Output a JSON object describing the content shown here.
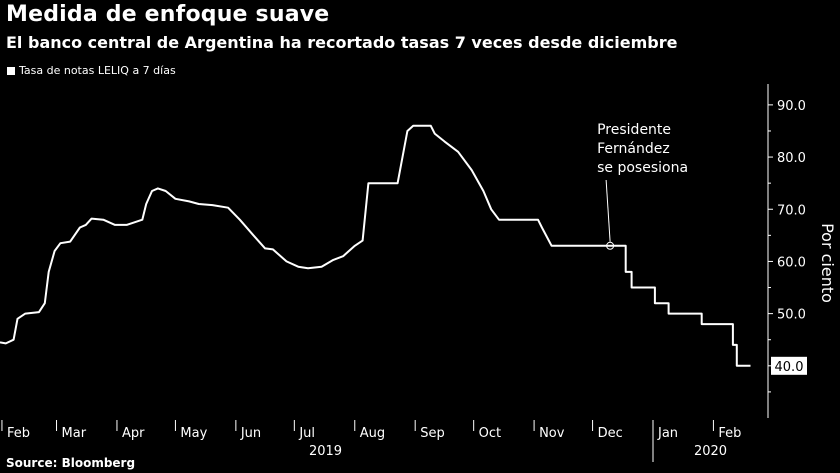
{
  "title": "Medida de enfoque suave",
  "subtitle": "El banco central de Argentina ha recortado tasas 7 veces desde diciembre",
  "source": "Source: Bloomberg",
  "chart_data": {
    "type": "line",
    "series": [
      {
        "name": "Tasa de notas LELIQ a 7 días",
        "color": "#ffffff",
        "points": [
          [
            "2019-01-31",
            44.5
          ],
          [
            "2019-02-03",
            44.3
          ],
          [
            "2019-02-07",
            45.0
          ],
          [
            "2019-02-09",
            49.0
          ],
          [
            "2019-02-13",
            50.0
          ],
          [
            "2019-02-20",
            50.3
          ],
          [
            "2019-02-23",
            52.0
          ],
          [
            "2019-02-25",
            58.0
          ],
          [
            "2019-02-28",
            62.0
          ],
          [
            "2019-03-03",
            63.5
          ],
          [
            "2019-03-08",
            63.8
          ],
          [
            "2019-03-13",
            66.5
          ],
          [
            "2019-03-16",
            67.0
          ],
          [
            "2019-03-19",
            68.2
          ],
          [
            "2019-03-25",
            68.0
          ],
          [
            "2019-03-31",
            67.0
          ],
          [
            "2019-04-06",
            67.0
          ],
          [
            "2019-04-10",
            67.5
          ],
          [
            "2019-04-14",
            68.0
          ],
          [
            "2019-04-16",
            71.0
          ],
          [
            "2019-04-19",
            73.5
          ],
          [
            "2019-04-22",
            74.0
          ],
          [
            "2019-04-26",
            73.5
          ],
          [
            "2019-05-01",
            72.0
          ],
          [
            "2019-05-08",
            71.5
          ],
          [
            "2019-05-13",
            71.0
          ],
          [
            "2019-05-20",
            70.8
          ],
          [
            "2019-05-28",
            70.3
          ],
          [
            "2019-06-03",
            68.0
          ],
          [
            "2019-06-10",
            65.0
          ],
          [
            "2019-06-16",
            62.5
          ],
          [
            "2019-06-20",
            62.3
          ],
          [
            "2019-06-27",
            60.0
          ],
          [
            "2019-07-03",
            59.0
          ],
          [
            "2019-07-08",
            58.7
          ],
          [
            "2019-07-15",
            59.0
          ],
          [
            "2019-07-21",
            60.3
          ],
          [
            "2019-07-26",
            61.0
          ],
          [
            "2019-08-01",
            63.0
          ],
          [
            "2019-08-05",
            64.0
          ],
          [
            "2019-08-08",
            75.0
          ],
          [
            "2019-08-23",
            75.0
          ],
          [
            "2019-08-28",
            85.0
          ],
          [
            "2019-08-31",
            86.0
          ],
          [
            "2019-09-09",
            86.0
          ],
          [
            "2019-09-11",
            84.5
          ],
          [
            "2019-09-16",
            83.0
          ],
          [
            "2019-09-23",
            81.0
          ],
          [
            "2019-09-30",
            77.5
          ],
          [
            "2019-10-06",
            73.5
          ],
          [
            "2019-10-10",
            70.0
          ],
          [
            "2019-10-14",
            68.0
          ],
          [
            "2019-11-03",
            68.0
          ],
          [
            "2019-11-05",
            66.5
          ],
          [
            "2019-11-10",
            63.0
          ],
          [
            "2019-12-18",
            63.0
          ],
          [
            "2019-12-18",
            58.0
          ],
          [
            "2019-12-21",
            58.0
          ],
          [
            "2019-12-21",
            55.0
          ],
          [
            "2020-01-02",
            55.0
          ],
          [
            "2020-01-02",
            52.0
          ],
          [
            "2020-01-09",
            52.0
          ],
          [
            "2020-01-09",
            50.0
          ],
          [
            "2020-01-26",
            50.0
          ],
          [
            "2020-01-26",
            48.0
          ],
          [
            "2020-02-11",
            48.0
          ],
          [
            "2020-02-11",
            44.0
          ],
          [
            "2020-02-13",
            44.0
          ],
          [
            "2020-02-13",
            40.0
          ],
          [
            "2020-02-20",
            40.0
          ]
        ]
      }
    ],
    "x_ticks": [
      "Feb",
      "Mar",
      "Apr",
      "May",
      "Jun",
      "Jul",
      "Aug",
      "Sep",
      "Oct",
      "Nov",
      "Dec",
      "Jan",
      "Feb"
    ],
    "x_tick_dates": [
      "2019-02-01",
      "2019-03-01",
      "2019-04-01",
      "2019-05-01",
      "2019-06-01",
      "2019-07-01",
      "2019-08-01",
      "2019-09-01",
      "2019-10-01",
      "2019-11-01",
      "2019-12-01",
      "2020-01-01",
      "2020-02-01"
    ],
    "year_labels": [
      {
        "label": "2019",
        "start": "2019-01-01",
        "end": "2019-12-31"
      },
      {
        "label": "2020",
        "start": "2020-01-01",
        "end": "2020-02-29"
      }
    ],
    "xlim": [
      "2019-01-31",
      "2020-02-29"
    ],
    "y_ticks": [
      "40.0",
      "50.0",
      "60.0",
      "70.0",
      "80.0",
      "90.0"
    ],
    "ylim": [
      30,
      94
    ],
    "ylabel": "Por ciento",
    "last_value_label": "40.0",
    "annotation": {
      "lines": [
        "Presidente",
        "Fernández",
        "se posesiona"
      ],
      "date": "2019-12-10",
      "value": 63.0
    },
    "grid": false,
    "legend_position": "top-left"
  }
}
